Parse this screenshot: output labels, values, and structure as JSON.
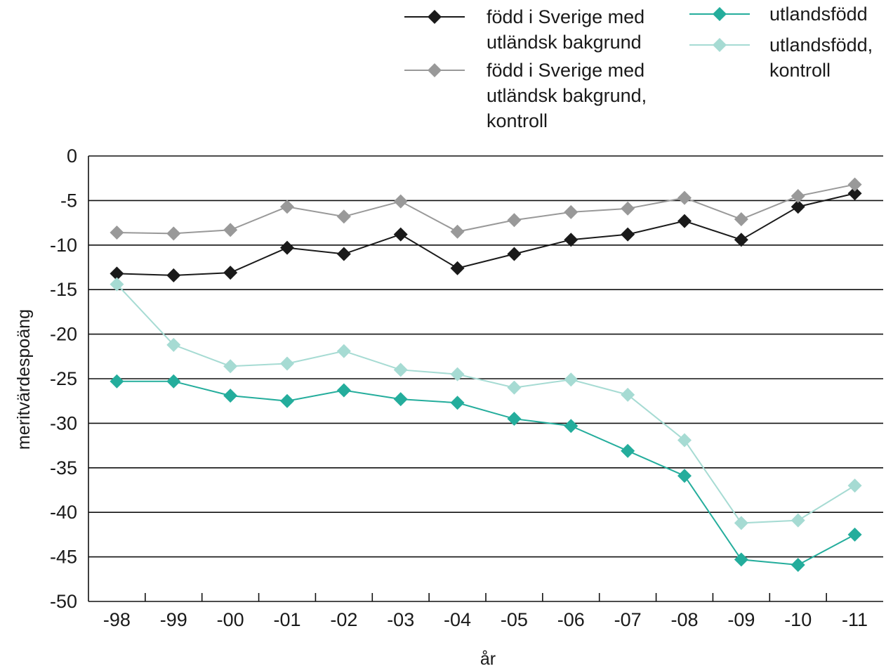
{
  "chart_data": {
    "type": "line",
    "xlabel": "år",
    "ylabel": "meritvärdespoäng",
    "categories": [
      "-98",
      "-99",
      "-00",
      "-01",
      "-02",
      "-03",
      "-04",
      "-05",
      "-06",
      "-07",
      "-08",
      "-09",
      "-10",
      "-11"
    ],
    "ylim": [
      -50,
      0
    ],
    "yticks": [
      0,
      -5,
      -10,
      -15,
      -20,
      -25,
      -30,
      -35,
      -40,
      -45,
      -50
    ],
    "ytick_labels": [
      "0",
      "-5",
      "-10",
      "-15",
      "-20",
      "-25",
      "-30",
      "-35",
      "-40",
      "-45",
      "-50"
    ],
    "grid": "horizontal",
    "legend_position": "top",
    "series": [
      {
        "name": "född i Sverige med utländsk bakgrund",
        "label_lines": [
          "född i Sverige med",
          "utländsk bakgrund"
        ],
        "color": "#1a1a1a",
        "values": [
          -13.2,
          -13.4,
          -13.1,
          -10.3,
          -11.0,
          -8.8,
          -12.6,
          -11.0,
          -9.4,
          -8.8,
          -7.3,
          -9.4,
          -5.7,
          -4.2
        ]
      },
      {
        "name": "född i Sverige med utländsk bakgrund, kontroll",
        "label_lines": [
          "född i Sverige med",
          "utländsk bakgrund,",
          "kontroll"
        ],
        "color": "#999999",
        "values": [
          -8.6,
          -8.7,
          -8.3,
          -5.7,
          -6.8,
          -5.1,
          -8.5,
          -7.2,
          -6.3,
          -5.9,
          -4.7,
          -7.1,
          -4.5,
          -3.2
        ]
      },
      {
        "name": "utlandsfödd",
        "label_lines": [
          "utlandsfödd"
        ],
        "color": "#24ad9c",
        "values": [
          -25.3,
          -25.3,
          -26.9,
          -27.5,
          -26.3,
          -27.3,
          -27.7,
          -29.5,
          -30.3,
          -33.1,
          -35.9,
          -45.3,
          -45.9,
          -42.5
        ]
      },
      {
        "name": "utlandsfödd, kontroll",
        "label_lines": [
          "utlandsfödd,",
          "kontroll"
        ],
        "color": "#a6dbd3",
        "values": [
          -14.4,
          -21.2,
          -23.6,
          -23.3,
          -21.9,
          -24.0,
          -24.5,
          -26.0,
          -25.1,
          -26.8,
          -31.9,
          -41.2,
          -40.9,
          -37.0
        ]
      }
    ]
  }
}
